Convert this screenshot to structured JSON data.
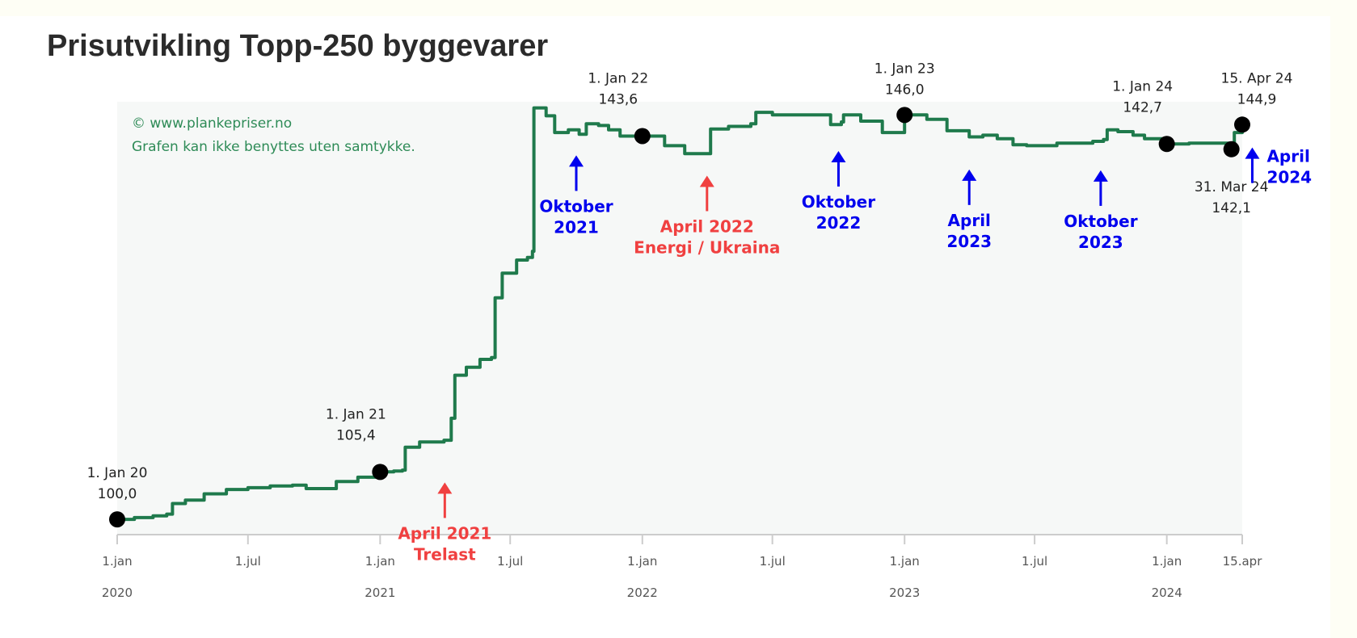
{
  "page": {
    "title": "Prisutvikling Topp-250 byggevarer"
  },
  "colors": {
    "line": "#1f7a4c",
    "plot_bg": "#f6f8f7",
    "marker": "#000000",
    "annotation_blue": "#0000ee",
    "annotation_red": "#f04040",
    "watermark": "#2e8b57",
    "axis": "#cccccc",
    "tick_text": "#555555",
    "point_text": "#222222"
  },
  "chart_data": {
    "type": "line",
    "title": "Prisutvikling Topp-250 byggevarer",
    "xlabel": "",
    "ylabel": "",
    "grid": false,
    "ylim": [
      99,
      147.5
    ],
    "xlim": [
      "2020-01-01",
      "2024-04-15"
    ],
    "watermark": [
      "© www.plankepriser.no",
      "Grafen kan ikke benyttes uten samtykke."
    ],
    "x_ticks": [
      {
        "date": "2020-01-01",
        "label": "1.jan",
        "year": "2020"
      },
      {
        "date": "2020-07-01",
        "label": "1.jul",
        "year": ""
      },
      {
        "date": "2021-01-01",
        "label": "1.jan",
        "year": "2021"
      },
      {
        "date": "2021-07-01",
        "label": "1.jul",
        "year": ""
      },
      {
        "date": "2022-01-01",
        "label": "1.jan",
        "year": "2022"
      },
      {
        "date": "2022-07-01",
        "label": "1.jul",
        "year": ""
      },
      {
        "date": "2023-01-01",
        "label": "1.jan",
        "year": "2023"
      },
      {
        "date": "2023-07-01",
        "label": "1.jul",
        "year": ""
      },
      {
        "date": "2024-01-01",
        "label": "1.jan",
        "year": "2024"
      },
      {
        "date": "2024-04-15",
        "label": "15.apr",
        "year": ""
      }
    ],
    "series": [
      {
        "points": [
          [
            "2020-01-01",
            100.0
          ],
          [
            "2020-01-25",
            100.2
          ],
          [
            "2020-02-20",
            100.4
          ],
          [
            "2020-03-10",
            100.6
          ],
          [
            "2020-03-18",
            101.8
          ],
          [
            "2020-04-05",
            102.2
          ],
          [
            "2020-05-01",
            102.9
          ],
          [
            "2020-06-01",
            103.4
          ],
          [
            "2020-07-01",
            103.6
          ],
          [
            "2020-08-01",
            103.8
          ],
          [
            "2020-09-01",
            103.9
          ],
          [
            "2020-09-20",
            103.5
          ],
          [
            "2020-10-15",
            103.5
          ],
          [
            "2020-11-01",
            104.3
          ],
          [
            "2020-12-01",
            104.8
          ],
          [
            "2021-01-01",
            105.4
          ],
          [
            "2021-01-20",
            105.5
          ],
          [
            "2021-02-01",
            105.6
          ],
          [
            "2021-02-05",
            108.2
          ],
          [
            "2021-02-25",
            108.8
          ],
          [
            "2021-03-15",
            108.8
          ],
          [
            "2021-03-31",
            109.0
          ],
          [
            "2021-04-10",
            111.5
          ],
          [
            "2021-04-15",
            116.4
          ],
          [
            "2021-05-01",
            117.3
          ],
          [
            "2021-05-20",
            118.2
          ],
          [
            "2021-06-05",
            118.4
          ],
          [
            "2021-06-10",
            125.2
          ],
          [
            "2021-06-20",
            128.0
          ],
          [
            "2021-07-10",
            129.5
          ],
          [
            "2021-07-25",
            129.8
          ],
          [
            "2021-08-01",
            130.5
          ],
          [
            "2021-08-03",
            146.8
          ],
          [
            "2021-08-20",
            145.9
          ],
          [
            "2021-09-01",
            144.0
          ],
          [
            "2021-09-20",
            144.3
          ],
          [
            "2021-10-05",
            143.8
          ],
          [
            "2021-10-15",
            145.0
          ],
          [
            "2021-11-01",
            144.8
          ],
          [
            "2021-11-15",
            144.3
          ],
          [
            "2021-12-01",
            143.6
          ],
          [
            "2022-01-01",
            143.6
          ],
          [
            "2022-02-01",
            142.5
          ],
          [
            "2022-03-01",
            141.6
          ],
          [
            "2022-04-01",
            141.6
          ],
          [
            "2022-04-06",
            144.4
          ],
          [
            "2022-05-01",
            144.7
          ],
          [
            "2022-06-01",
            145.0
          ],
          [
            "2022-06-08",
            146.3
          ],
          [
            "2022-07-01",
            146.0
          ],
          [
            "2022-08-01",
            146.0
          ],
          [
            "2022-09-01",
            146.0
          ],
          [
            "2022-09-20",
            144.9
          ],
          [
            "2022-10-05",
            145.2
          ],
          [
            "2022-10-08",
            146.0
          ],
          [
            "2022-11-01",
            145.3
          ],
          [
            "2022-12-01",
            144.0
          ],
          [
            "2023-01-01",
            146.0
          ],
          [
            "2023-02-01",
            145.5
          ],
          [
            "2023-03-01",
            144.2
          ],
          [
            "2023-04-01",
            143.5
          ],
          [
            "2023-04-20",
            143.7
          ],
          [
            "2023-05-10",
            143.3
          ],
          [
            "2023-06-01",
            142.6
          ],
          [
            "2023-06-20",
            142.5
          ],
          [
            "2023-08-01",
            142.8
          ],
          [
            "2023-09-01",
            142.8
          ],
          [
            "2023-09-20",
            143.0
          ],
          [
            "2023-10-05",
            143.2
          ],
          [
            "2023-10-10",
            144.3
          ],
          [
            "2023-10-25",
            144.1
          ],
          [
            "2023-11-15",
            143.7
          ],
          [
            "2023-12-01",
            143.3
          ],
          [
            "2024-01-01",
            142.7
          ],
          [
            "2024-02-01",
            142.8
          ],
          [
            "2024-03-31",
            142.1
          ],
          [
            "2024-04-04",
            144.0
          ],
          [
            "2024-04-15",
            144.9
          ]
        ]
      }
    ],
    "point_labels": [
      {
        "date": "2020-01-01",
        "value": 100.0,
        "date_label": "1. Jan 20",
        "value_label": "100,0",
        "label_pos": "above"
      },
      {
        "date": "2021-01-01",
        "value": 105.4,
        "date_label": "1. Jan 21",
        "value_label": "105,4",
        "label_pos": "above-left"
      },
      {
        "date": "2022-01-01",
        "value": 143.6,
        "date_label": "1. Jan 22",
        "value_label": "143,6",
        "label_pos": "above-left"
      },
      {
        "date": "2023-01-01",
        "value": 146.0,
        "date_label": "1. Jan 23",
        "value_label": "146,0",
        "label_pos": "above"
      },
      {
        "date": "2024-01-01",
        "value": 142.7,
        "date_label": "1. Jan 24",
        "value_label": "142,7",
        "label_pos": "above-left"
      },
      {
        "date": "2024-03-31",
        "value": 142.1,
        "date_label": "31. Mar 24",
        "value_label": "142,1",
        "label_pos": "below"
      },
      {
        "date": "2024-04-15",
        "value": 144.9,
        "date_label": "15. Apr 24",
        "value_label": "144,9",
        "label_pos": "above"
      }
    ],
    "annotations": [
      {
        "date": "2021-04-01",
        "lines": [
          "April 2021",
          "Trelast"
        ],
        "color": "red",
        "value": 104.2
      },
      {
        "date": "2021-10-01",
        "lines": [
          "Oktober",
          "2021"
        ],
        "color": "blue",
        "value": 141.4
      },
      {
        "date": "2022-04-01",
        "lines": [
          "April 2022",
          "Energi / Ukraina"
        ],
        "color": "red",
        "value": 139.1
      },
      {
        "date": "2022-10-01",
        "lines": [
          "Oktober",
          "2022"
        ],
        "color": "blue",
        "value": 141.9
      },
      {
        "date": "2023-04-01",
        "lines": [
          "April",
          "2023"
        ],
        "color": "blue",
        "value": 139.8
      },
      {
        "date": "2023-10-01",
        "lines": [
          "Oktober",
          "2023"
        ],
        "color": "blue",
        "value": 139.7
      },
      {
        "date": "2024-04-29",
        "lines": [
          "April",
          "2024"
        ],
        "color": "blue",
        "value": 142.3
      }
    ]
  }
}
